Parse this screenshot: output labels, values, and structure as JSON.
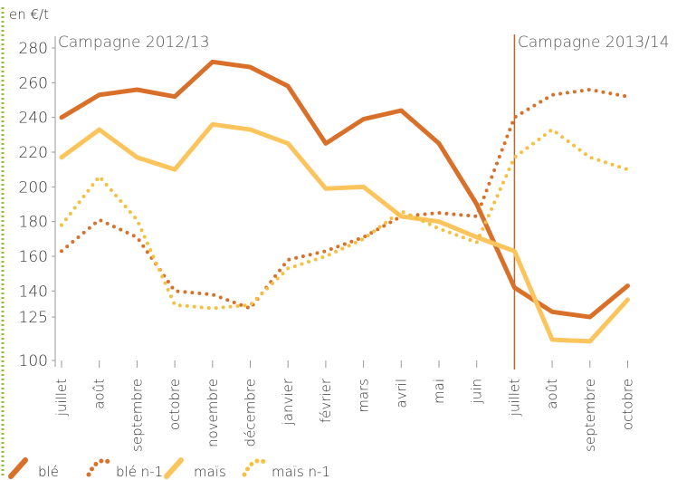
{
  "chart_data": {
    "type": "line",
    "y_label": "en €/t",
    "annotations": [
      "Campagne 2012/13",
      "Campagne 2013/14"
    ],
    "categories": [
      "juillet",
      "août",
      "septembre",
      "octobre",
      "novembre",
      "décembre",
      "janvier",
      "février",
      "mars",
      "avril",
      "mai",
      "juin",
      "juillet",
      "août",
      "septembre",
      "octobre"
    ],
    "series": [
      {
        "name": "blé",
        "color": "#d9702a",
        "style": "solid",
        "values": [
          240,
          253,
          256,
          252,
          272,
          269,
          258,
          225,
          239,
          244,
          225,
          190,
          142,
          128,
          125,
          143
        ]
      },
      {
        "name": "blé n-1",
        "color": "#d9702a",
        "style": "dotted",
        "values": [
          163,
          181,
          171,
          140,
          138,
          130,
          158,
          163,
          171,
          183,
          185,
          183,
          240,
          253,
          256,
          252
        ]
      },
      {
        "name": "maïs",
        "color": "#fbc45c",
        "style": "solid",
        "values": [
          217,
          233,
          217,
          210,
          236,
          233,
          225,
          199,
          200,
          183,
          180,
          171,
          163,
          112,
          111,
          135
        ]
      },
      {
        "name": "maïs n-1",
        "color": "#f5c040",
        "style": "dotted",
        "values": [
          178,
          206,
          181,
          132,
          130,
          132,
          153,
          160,
          170,
          186,
          176,
          168,
          217,
          233,
          217,
          210
        ]
      }
    ],
    "ylim": [
      100,
      280
    ],
    "yticks": [
      100,
      125,
      140,
      160,
      180,
      200,
      220,
      240,
      260,
      280
    ],
    "grid": false
  }
}
